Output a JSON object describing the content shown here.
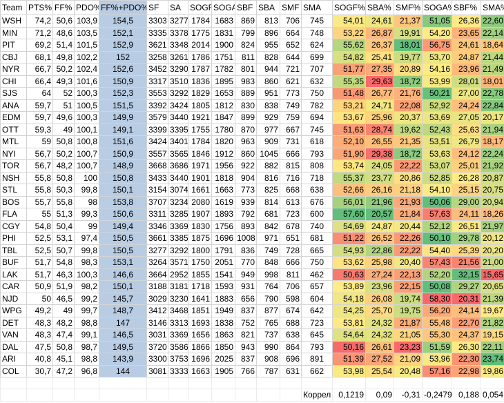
{
  "table": {
    "header": [
      "Team",
      "PTS%",
      "FF%",
      "PDO%",
      "FF%+PDO%",
      "SF",
      "SA",
      "SOGF",
      "SOGA",
      "SBF",
      "SBA",
      "SMF",
      "SMA",
      "SOGF%",
      "SBA%",
      "SMF%",
      "SOGA%",
      "SBF%",
      "SMA%"
    ],
    "rows": [
      [
        "WSH",
        "74,2",
        "50,6",
        "103,9",
        "154,5",
        "3303",
        "3277",
        "1784",
        "1683",
        "869",
        "813",
        "706",
        "745",
        "54,01",
        "24,61",
        "21,37",
        "51,05",
        "26,36",
        "22,60"
      ],
      [
        "MIN",
        "71,2",
        "48,6",
        "103,5",
        "152,1",
        "3335",
        "3378",
        "1775",
        "1831",
        "799",
        "896",
        "664",
        "748",
        "53,22",
        "26,87",
        "19,91",
        "54,20",
        "23,65",
        "22,14"
      ],
      [
        "PIT",
        "69,2",
        "51,4",
        "101,5",
        "152,9",
        "3621",
        "3348",
        "2014",
        "1900",
        "824",
        "955",
        "652",
        "624",
        "55,62",
        "26,37",
        "18,01",
        "56,75",
        "24,61",
        "18,64"
      ],
      [
        "CBJ",
        "68,1",
        "49,8",
        "102,2",
        "152",
        "3258",
        "3261",
        "1786",
        "1751",
        "811",
        "828",
        "644",
        "699",
        "54,82",
        "25,41",
        "19,77",
        "53,70",
        "24,87",
        "21,44"
      ],
      [
        "NYR",
        "66,7",
        "50,2",
        "102,4",
        "152,6",
        "3452",
        "3290",
        "1787",
        "1782",
        "801",
        "944",
        "721",
        "707",
        "51,77",
        "27,35",
        "20,89",
        "54,16",
        "23,96",
        "21,49"
      ],
      [
        "CHI",
        "66,4",
        "49,3",
        "101,6",
        "150,9",
        "3317",
        "3510",
        "1836",
        "1895",
        "983",
        "860",
        "621",
        "632",
        "55,35",
        "29,63",
        "18,72",
        "53,99",
        "28,01",
        "18,01"
      ],
      [
        "SJS",
        "64",
        "52",
        "100,3",
        "152,3",
        "3553",
        "3292",
        "1829",
        "1653",
        "889",
        "951",
        "773",
        "750",
        "51,48",
        "26,77",
        "21,76",
        "50,21",
        "27,00",
        "22,78"
      ],
      [
        "ANA",
        "59,7",
        "51",
        "100,5",
        "151,5",
        "3392",
        "3424",
        "1805",
        "1812",
        "830",
        "838",
        "749",
        "782",
        "53,21",
        "24,71",
        "22,08",
        "52,92",
        "24,24",
        "22,84"
      ],
      [
        "EDM",
        "59,7",
        "49,6",
        "100,3",
        "149,9",
        "3579",
        "3440",
        "1921",
        "1847",
        "899",
        "929",
        "759",
        "694",
        "53,67",
        "25,96",
        "20,37",
        "53,69",
        "27,05",
        "20,17"
      ],
      [
        "OTT",
        "59,3",
        "49",
        "100,1",
        "149,1",
        "3399",
        "3395",
        "1755",
        "1780",
        "870",
        "977",
        "667",
        "745",
        "51,63",
        "28,74",
        "19,62",
        "52,43",
        "25,63",
        "21,94"
      ],
      [
        "MTL",
        "59",
        "50,8",
        "100,8",
        "151,6",
        "3424",
        "3401",
        "1784",
        "1820",
        "963",
        "909",
        "731",
        "618",
        "52,10",
        "26,55",
        "21,35",
        "53,51",
        "26,79",
        "18,17"
      ],
      [
        "NYI",
        "56,7",
        "50,2",
        "100,7",
        "150,9",
        "3557",
        "3565",
        "1846",
        "1912",
        "860",
        "1045",
        "666",
        "793",
        "51,90",
        "29,38",
        "18,72",
        "53,63",
        "24,12",
        "22,24"
      ],
      [
        "TOR",
        "56,7",
        "48,2",
        "100,7",
        "148,9",
        "3668",
        "3686",
        "1971",
        "1956",
        "922",
        "882",
        "815",
        "808",
        "53,74",
        "24,05",
        "22,22",
        "53,07",
        "25,01",
        "21,92"
      ],
      [
        "NSH",
        "55,8",
        "50,8",
        "100",
        "150,8",
        "3433",
        "3440",
        "1901",
        "1818",
        "904",
        "816",
        "716",
        "718",
        "55,37",
        "23,77",
        "20,86",
        "52,85",
        "26,28",
        "20,87"
      ],
      [
        "STL",
        "55,8",
        "50,3",
        "99,8",
        "150,1",
        "3154",
        "3074",
        "1661",
        "1663",
        "773",
        "825",
        "668",
        "638",
        "52,66",
        "26,16",
        "21,18",
        "54,10",
        "25,15",
        "20,75"
      ],
      [
        "BOS",
        "55,7",
        "55,8",
        "98",
        "153,8",
        "3707",
        "3234",
        "2080",
        "1619",
        "939",
        "814",
        "613",
        "676",
        "56,01",
        "21,96",
        "21,93",
        "50,06",
        "29,00",
        "20,94"
      ],
      [
        "FLA",
        "55",
        "51,3",
        "99,3",
        "150,6",
        "3311",
        "3285",
        "1907",
        "1893",
        "792",
        "681",
        "723",
        "600",
        "57,60",
        "20,57",
        "21,84",
        "57,63",
        "24,11",
        "18,26"
      ],
      [
        "CGY",
        "54,8",
        "50,4",
        "99",
        "149,4",
        "3346",
        "3369",
        "1830",
        "1756",
        "893",
        "842",
        "678",
        "740",
        "54,69",
        "24,87",
        "20,44",
        "52,12",
        "26,51",
        "21,97"
      ],
      [
        "PHI",
        "52,5",
        "53,1",
        "97,4",
        "150,5",
        "3661",
        "3385",
        "1875",
        "1696",
        "1008",
        "971",
        "651",
        "681",
        "51,22",
        "26,52",
        "22,26",
        "50,10",
        "29,78",
        "20,12"
      ],
      [
        "TBL",
        "52,5",
        "50,7",
        "99,8",
        "150,5",
        "3277",
        "3292",
        "1800",
        "1791",
        "836",
        "749",
        "728",
        "665",
        "54,93",
        "22,86",
        "22,22",
        "54,40",
        "25,39",
        "20,20"
      ],
      [
        "BUF",
        "51,7",
        "54,8",
        "98,3",
        "153,1",
        "3264",
        "3571",
        "1750",
        "2051",
        "770",
        "848",
        "666",
        "750",
        "53,62",
        "25,98",
        "20,40",
        "57,43",
        "21,56",
        "21,00"
      ],
      [
        "LAK",
        "51,7",
        "46,3",
        "100,3",
        "146,6",
        "3664",
        "2952",
        "1855",
        "1541",
        "949",
        "998",
        "811",
        "462",
        "50,63",
        "27,24",
        "22,13",
        "52,20",
        "32,15",
        "15,65"
      ],
      [
        "CAR",
        "50,9",
        "51,9",
        "98,2",
        "150,1",
        "3188",
        "3181",
        "1718",
        "1593",
        "931",
        "764",
        "706",
        "657",
        "53,89",
        "23,96",
        "22,15",
        "50,08",
        "29,27",
        "20,65"
      ],
      [
        "NJD",
        "50",
        "46,5",
        "99,2",
        "145,7",
        "3029",
        "3230",
        "1641",
        "1883",
        "656",
        "790",
        "598",
        "604",
        "54,18",
        "26,08",
        "19,74",
        "58,30",
        "20,31",
        "21,39"
      ],
      [
        "WPG",
        "49,2",
        "49",
        "99,7",
        "148,7",
        "3412",
        "3468",
        "1851",
        "1949",
        "837",
        "877",
        "674",
        "642",
        "54,25",
        "25,70",
        "19,75",
        "56,20",
        "24,14",
        "19,67"
      ],
      [
        "DET",
        "48,3",
        "48,2",
        "98,8",
        "147",
        "3146",
        "3313",
        "1693",
        "1838",
        "752",
        "765",
        "688",
        "723",
        "53,81",
        "24,32",
        "21,87",
        "55,48",
        "22,70",
        "21,82"
      ],
      [
        "VAN",
        "48,3",
        "47,4",
        "99,1",
        "146,5",
        "3031",
        "3369",
        "1656",
        "1863",
        "821",
        "737",
        "638",
        "645",
        "54,64",
        "24,32",
        "21,05",
        "55,30",
        "24,37",
        "19,15"
      ],
      [
        "DAL",
        "47,5",
        "50,8",
        "98,7",
        "149,5",
        "3720",
        "3586",
        "1866",
        "1850",
        "943",
        "990",
        "864",
        "793",
        "50,16",
        "26,61",
        "23,23",
        "51,59",
        "26,30",
        "22,11"
      ],
      [
        "ARI",
        "40,8",
        "45,1",
        "98,8",
        "143,9",
        "3300",
        "3753",
        "1696",
        "2025",
        "837",
        "908",
        "696",
        "891",
        "51,39",
        "27,52",
        "21,09",
        "53,96",
        "22,30",
        "23,74"
      ],
      [
        "COL",
        "30,7",
        "47,2",
        "96,8",
        "144",
        "3081",
        "3333",
        "1663",
        "1905",
        "766",
        "787",
        "631",
        "662",
        "53,98",
        "25,54",
        "20,48",
        "57,16",
        "22,98",
        "19,86"
      ]
    ],
    "footer": {
      "label": "Коррел",
      "values": [
        "0,1219",
        "0,09",
        "-0,31",
        "-0,2479",
        "0,188",
        "0,054"
      ]
    }
  }
}
